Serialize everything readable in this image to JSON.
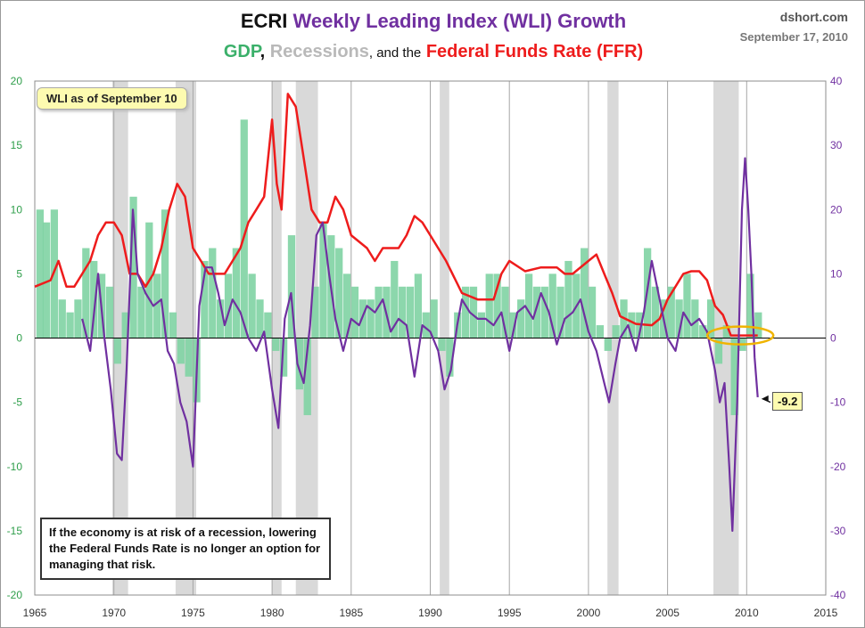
{
  "header": {
    "title_prefix": "ECRI",
    "title_main": "Weekly Leading Index (WLI) Growth",
    "subtitle_gdp": "GDP",
    "subtitle_sep1": ",",
    "subtitle_recessions": "Recessions",
    "subtitle_sep2": ", and the",
    "subtitle_ffr": "Federal Funds Rate (FFR)",
    "source": "dshort.com",
    "date": "September 17, 2010"
  },
  "callout_label": "WLI as of September 10",
  "note_text": "If the economy is at risk of a recession, lowering  the Federal Funds Rate is no longer an option for managing  that risk.",
  "last_value_label": "-9.2",
  "colors": {
    "wli": "#7030a0",
    "gdp": "#7fd3a3",
    "ffr": "#ee1c1c",
    "recession": "#d9d9d9",
    "left_axis": "#2e9e4a",
    "right_axis": "#7030a0",
    "highlight": "#f0b400"
  },
  "chart_data": {
    "type": "line",
    "title": "ECRI Weekly Leading Index (WLI) Growth",
    "subtitle": "GDP, Recessions, and the Federal Funds Rate (FFR)",
    "xlim": [
      1965,
      2015
    ],
    "x_ticks": [
      "1965",
      "1970",
      "1975",
      "1980",
      "1985",
      "1990",
      "1995",
      "2000",
      "2005",
      "2010",
      "2015"
    ],
    "y_left_lim": [
      -20,
      20
    ],
    "y_left_ticks": [
      "20",
      "15",
      "10",
      "5",
      "0",
      "-5",
      "-10",
      "-15",
      "-20"
    ],
    "y_right_lim": [
      -40,
      40
    ],
    "y_right_ticks": [
      "40",
      "30",
      "20",
      "10",
      "0",
      "-10",
      "-20",
      "-30",
      "-40"
    ],
    "recessions": [
      [
        1969.9,
        1970.9
      ],
      [
        1973.9,
        1975.2
      ],
      [
        1980.0,
        1980.6
      ],
      [
        1981.5,
        1982.9
      ],
      [
        1990.6,
        1991.2
      ],
      [
        2001.2,
        2001.9
      ],
      [
        2007.9,
        2009.5
      ]
    ],
    "series": [
      {
        "name": "GDP",
        "axis": "left",
        "kind": "bars",
        "x": [
          1965.1,
          1965.5,
          1966.0,
          1966.5,
          1967.0,
          1967.5,
          1968.0,
          1968.5,
          1969.0,
          1969.5,
          1970.0,
          1970.5,
          1971.0,
          1971.5,
          1972.0,
          1972.5,
          1973.0,
          1973.5,
          1974.0,
          1974.5,
          1975.0,
          1975.5,
          1976.0,
          1976.5,
          1977.0,
          1977.5,
          1978.0,
          1978.5,
          1979.0,
          1979.5,
          1980.0,
          1980.5,
          1981.0,
          1981.5,
          1982.0,
          1982.5,
          1983.0,
          1983.5,
          1984.0,
          1984.5,
          1985.0,
          1985.5,
          1986.0,
          1986.5,
          1987.0,
          1987.5,
          1988.0,
          1988.5,
          1989.0,
          1989.5,
          1990.0,
          1990.5,
          1991.0,
          1991.5,
          1992.0,
          1992.5,
          1993.0,
          1993.5,
          1994.0,
          1994.5,
          1995.0,
          1995.5,
          1996.0,
          1996.5,
          1997.0,
          1997.5,
          1998.0,
          1998.5,
          1999.0,
          1999.5,
          2000.0,
          2000.5,
          2001.0,
          2001.5,
          2002.0,
          2002.5,
          2003.0,
          2003.5,
          2004.0,
          2004.5,
          2005.0,
          2005.5,
          2006.0,
          2006.5,
          2007.0,
          2007.5,
          2008.0,
          2008.5,
          2009.0,
          2009.5,
          2010.0,
          2010.5
        ],
        "values": [
          10,
          9,
          10,
          3,
          2,
          3,
          7,
          6,
          5,
          4,
          -2,
          2,
          11,
          4,
          9,
          5,
          10,
          2,
          -2,
          -3,
          -5,
          6,
          7,
          3,
          5,
          7,
          17,
          5,
          3,
          2,
          -1,
          -3,
          8,
          -4,
          -6,
          4,
          9,
          8,
          7,
          5,
          4,
          3,
          3,
          4,
          4,
          6,
          4,
          4,
          5,
          2,
          3,
          -1,
          -3,
          2,
          4,
          4,
          2,
          5,
          5,
          4,
          2,
          3,
          5,
          4,
          4,
          5,
          4,
          6,
          5,
          7,
          4,
          1,
          -1,
          1,
          3,
          2,
          2,
          7,
          4,
          3,
          4,
          3,
          5,
          3,
          1,
          3,
          -2,
          1,
          -6,
          -1,
          5,
          2
        ]
      },
      {
        "name": "FFR",
        "axis": "left",
        "kind": "line",
        "x": [
          1965.0,
          1966.0,
          1966.5,
          1967.0,
          1967.5,
          1968.0,
          1968.5,
          1969.0,
          1969.5,
          1970.0,
          1970.5,
          1971.0,
          1971.5,
          1972.0,
          1972.5,
          1973.0,
          1973.5,
          1974.0,
          1974.5,
          1975.0,
          1975.5,
          1976.0,
          1976.5,
          1977.0,
          1977.5,
          1978.0,
          1978.5,
          1979.0,
          1979.5,
          1980.0,
          1980.3,
          1980.6,
          1981.0,
          1981.5,
          1982.0,
          1982.5,
          1983.0,
          1983.5,
          1984.0,
          1984.5,
          1985.0,
          1986.0,
          1986.5,
          1987.0,
          1988.0,
          1988.5,
          1989.0,
          1989.5,
          1990.0,
          1991.0,
          1992.0,
          1993.0,
          1994.0,
          1994.5,
          1995.0,
          1996.0,
          1997.0,
          1998.0,
          1998.5,
          1999.0,
          2000.0,
          2000.5,
          2001.0,
          2001.5,
          2002.0,
          2003.0,
          2004.0,
          2004.5,
          2005.0,
          2006.0,
          2006.5,
          2007.0,
          2007.5,
          2008.0,
          2008.5,
          2009.0,
          2010.0,
          2010.7
        ],
        "values": [
          4,
          4.5,
          6,
          4,
          4,
          5,
          6,
          8,
          9,
          9,
          8,
          5,
          5,
          4,
          5,
          7,
          10,
          12,
          11,
          7,
          6,
          5,
          5,
          5,
          6,
          7,
          9,
          10,
          11,
          17,
          12,
          10,
          19,
          18,
          14,
          10,
          9,
          9,
          11,
          10,
          8,
          7,
          6,
          7,
          7,
          8,
          9.5,
          9,
          8,
          6,
          3.5,
          3,
          3,
          5,
          6,
          5.2,
          5.5,
          5.5,
          5,
          5,
          6,
          6.5,
          5,
          3.5,
          1.7,
          1.1,
          1,
          1.5,
          3,
          5,
          5.2,
          5.2,
          4.5,
          2.5,
          1.8,
          0.2,
          0.2,
          0.2
        ]
      },
      {
        "name": "WLI",
        "axis": "right",
        "kind": "line",
        "x": [
          1968.0,
          1968.5,
          1969.0,
          1969.4,
          1969.8,
          1970.2,
          1970.5,
          1970.8,
          1971.2,
          1971.5,
          1972.0,
          1972.5,
          1973.0,
          1973.4,
          1973.8,
          1974.2,
          1974.6,
          1975.0,
          1975.4,
          1975.8,
          1976.2,
          1976.6,
          1977.0,
          1977.5,
          1978.0,
          1978.5,
          1979.0,
          1979.5,
          1980.0,
          1980.4,
          1980.8,
          1981.2,
          1981.6,
          1982.0,
          1982.4,
          1982.8,
          1983.2,
          1983.6,
          1984.0,
          1984.5,
          1985.0,
          1985.5,
          1986.0,
          1986.5,
          1987.0,
          1987.5,
          1988.0,
          1988.5,
          1989.0,
          1989.5,
          1990.0,
          1990.5,
          1990.9,
          1991.3,
          1991.7,
          1992.0,
          1992.5,
          1993.0,
          1993.5,
          1994.0,
          1994.5,
          1995.0,
          1995.5,
          1996.0,
          1996.5,
          1997.0,
          1997.5,
          1998.0,
          1998.5,
          1999.0,
          1999.5,
          2000.0,
          2000.5,
          2001.0,
          2001.3,
          2001.7,
          2002.0,
          2002.5,
          2003.0,
          2003.5,
          2004.0,
          2004.5,
          2005.0,
          2005.5,
          2006.0,
          2006.5,
          2007.0,
          2007.5,
          2008.0,
          2008.3,
          2008.6,
          2008.9,
          2009.1,
          2009.4,
          2009.7,
          2009.9,
          2010.1,
          2010.3,
          2010.5,
          2010.7
        ],
        "values": [
          3,
          -2,
          10,
          0,
          -8,
          -18,
          -19,
          -5,
          20,
          10,
          7,
          5,
          6,
          -2,
          -4,
          -10,
          -13,
          -20,
          5,
          11,
          11,
          7,
          2,
          6,
          4,
          0,
          -2,
          1,
          -8,
          -14,
          3,
          7,
          -4,
          -7,
          2,
          16,
          18,
          10,
          3,
          -2,
          3,
          2,
          5,
          4,
          6,
          1,
          3,
          2,
          -6,
          2,
          1,
          -2,
          -8,
          -5,
          2,
          6,
          4,
          3,
          3,
          2,
          4,
          -2,
          4,
          5,
          3,
          7,
          4,
          -1,
          3,
          4,
          6,
          1,
          -2,
          -7,
          -10,
          -4,
          0,
          2,
          -2,
          4,
          12,
          6,
          0,
          -2,
          4,
          2,
          3,
          1,
          -5,
          -10,
          -7,
          -20,
          -30,
          -10,
          20,
          28,
          20,
          10,
          -3,
          -9.2
        ]
      }
    ]
  }
}
